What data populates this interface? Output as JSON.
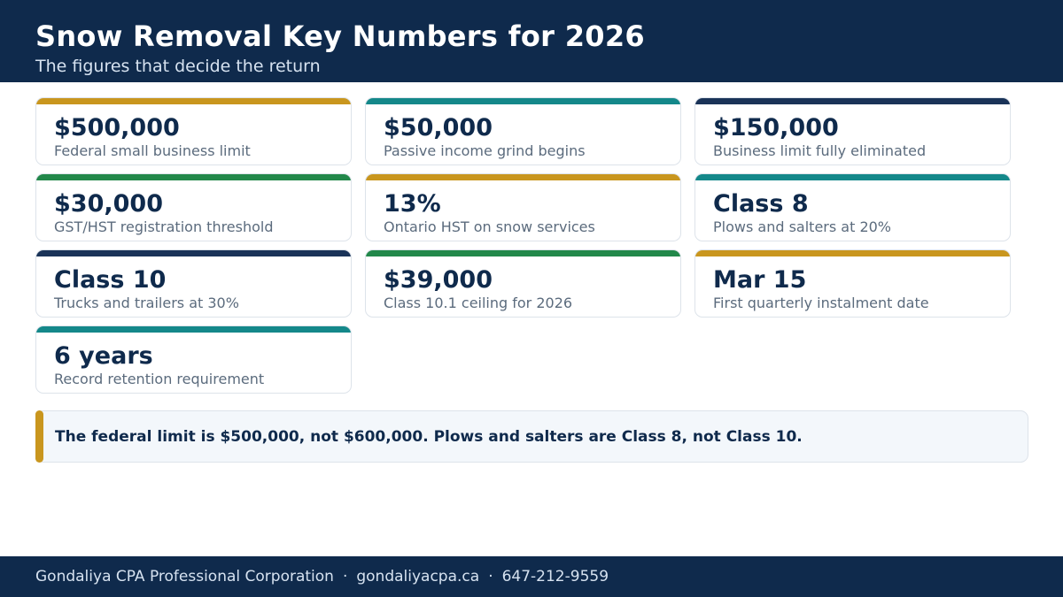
{
  "header": {
    "title": "Snow Removal Key Numbers for 2026",
    "subtitle": "The figures that decide the return"
  },
  "colors": {
    "navy": "#0f2a4c",
    "gold": "#c9961e",
    "teal": "#14888a",
    "green": "#22884a"
  },
  "cards": [
    {
      "value": "$500,000",
      "label": "Federal small business limit",
      "accent": "#c9961e"
    },
    {
      "value": "$50,000",
      "label": "Passive income grind begins",
      "accent": "#14888a"
    },
    {
      "value": "$150,000",
      "label": "Business limit fully eliminated",
      "accent": "#1a3358"
    },
    {
      "value": "$30,000",
      "label": "GST/HST registration threshold",
      "accent": "#22884a"
    },
    {
      "value": "13%",
      "label": "Ontario HST on snow services",
      "accent": "#c9961e"
    },
    {
      "value": "Class 8",
      "label": "Plows and salters at 20%",
      "accent": "#14888a"
    },
    {
      "value": "Class 10",
      "label": "Trucks and trailers at 30%",
      "accent": "#1a3358"
    },
    {
      "value": "$39,000",
      "label": "Class 10.1 ceiling for 2026",
      "accent": "#22884a"
    },
    {
      "value": "Mar 15",
      "label": "First quarterly instalment date",
      "accent": "#c9961e"
    },
    {
      "value": "6 years",
      "label": "Record retention requirement",
      "accent": "#14888a"
    }
  ],
  "note": {
    "text": "The federal limit is $500,000, not $600,000. Plows and salters are Class 8, not Class 10."
  },
  "footer": {
    "company": "Gondaliya CPA Professional Corporation",
    "separator": "·",
    "website": "gondaliyacpa.ca",
    "phone": "647-212-9559"
  }
}
